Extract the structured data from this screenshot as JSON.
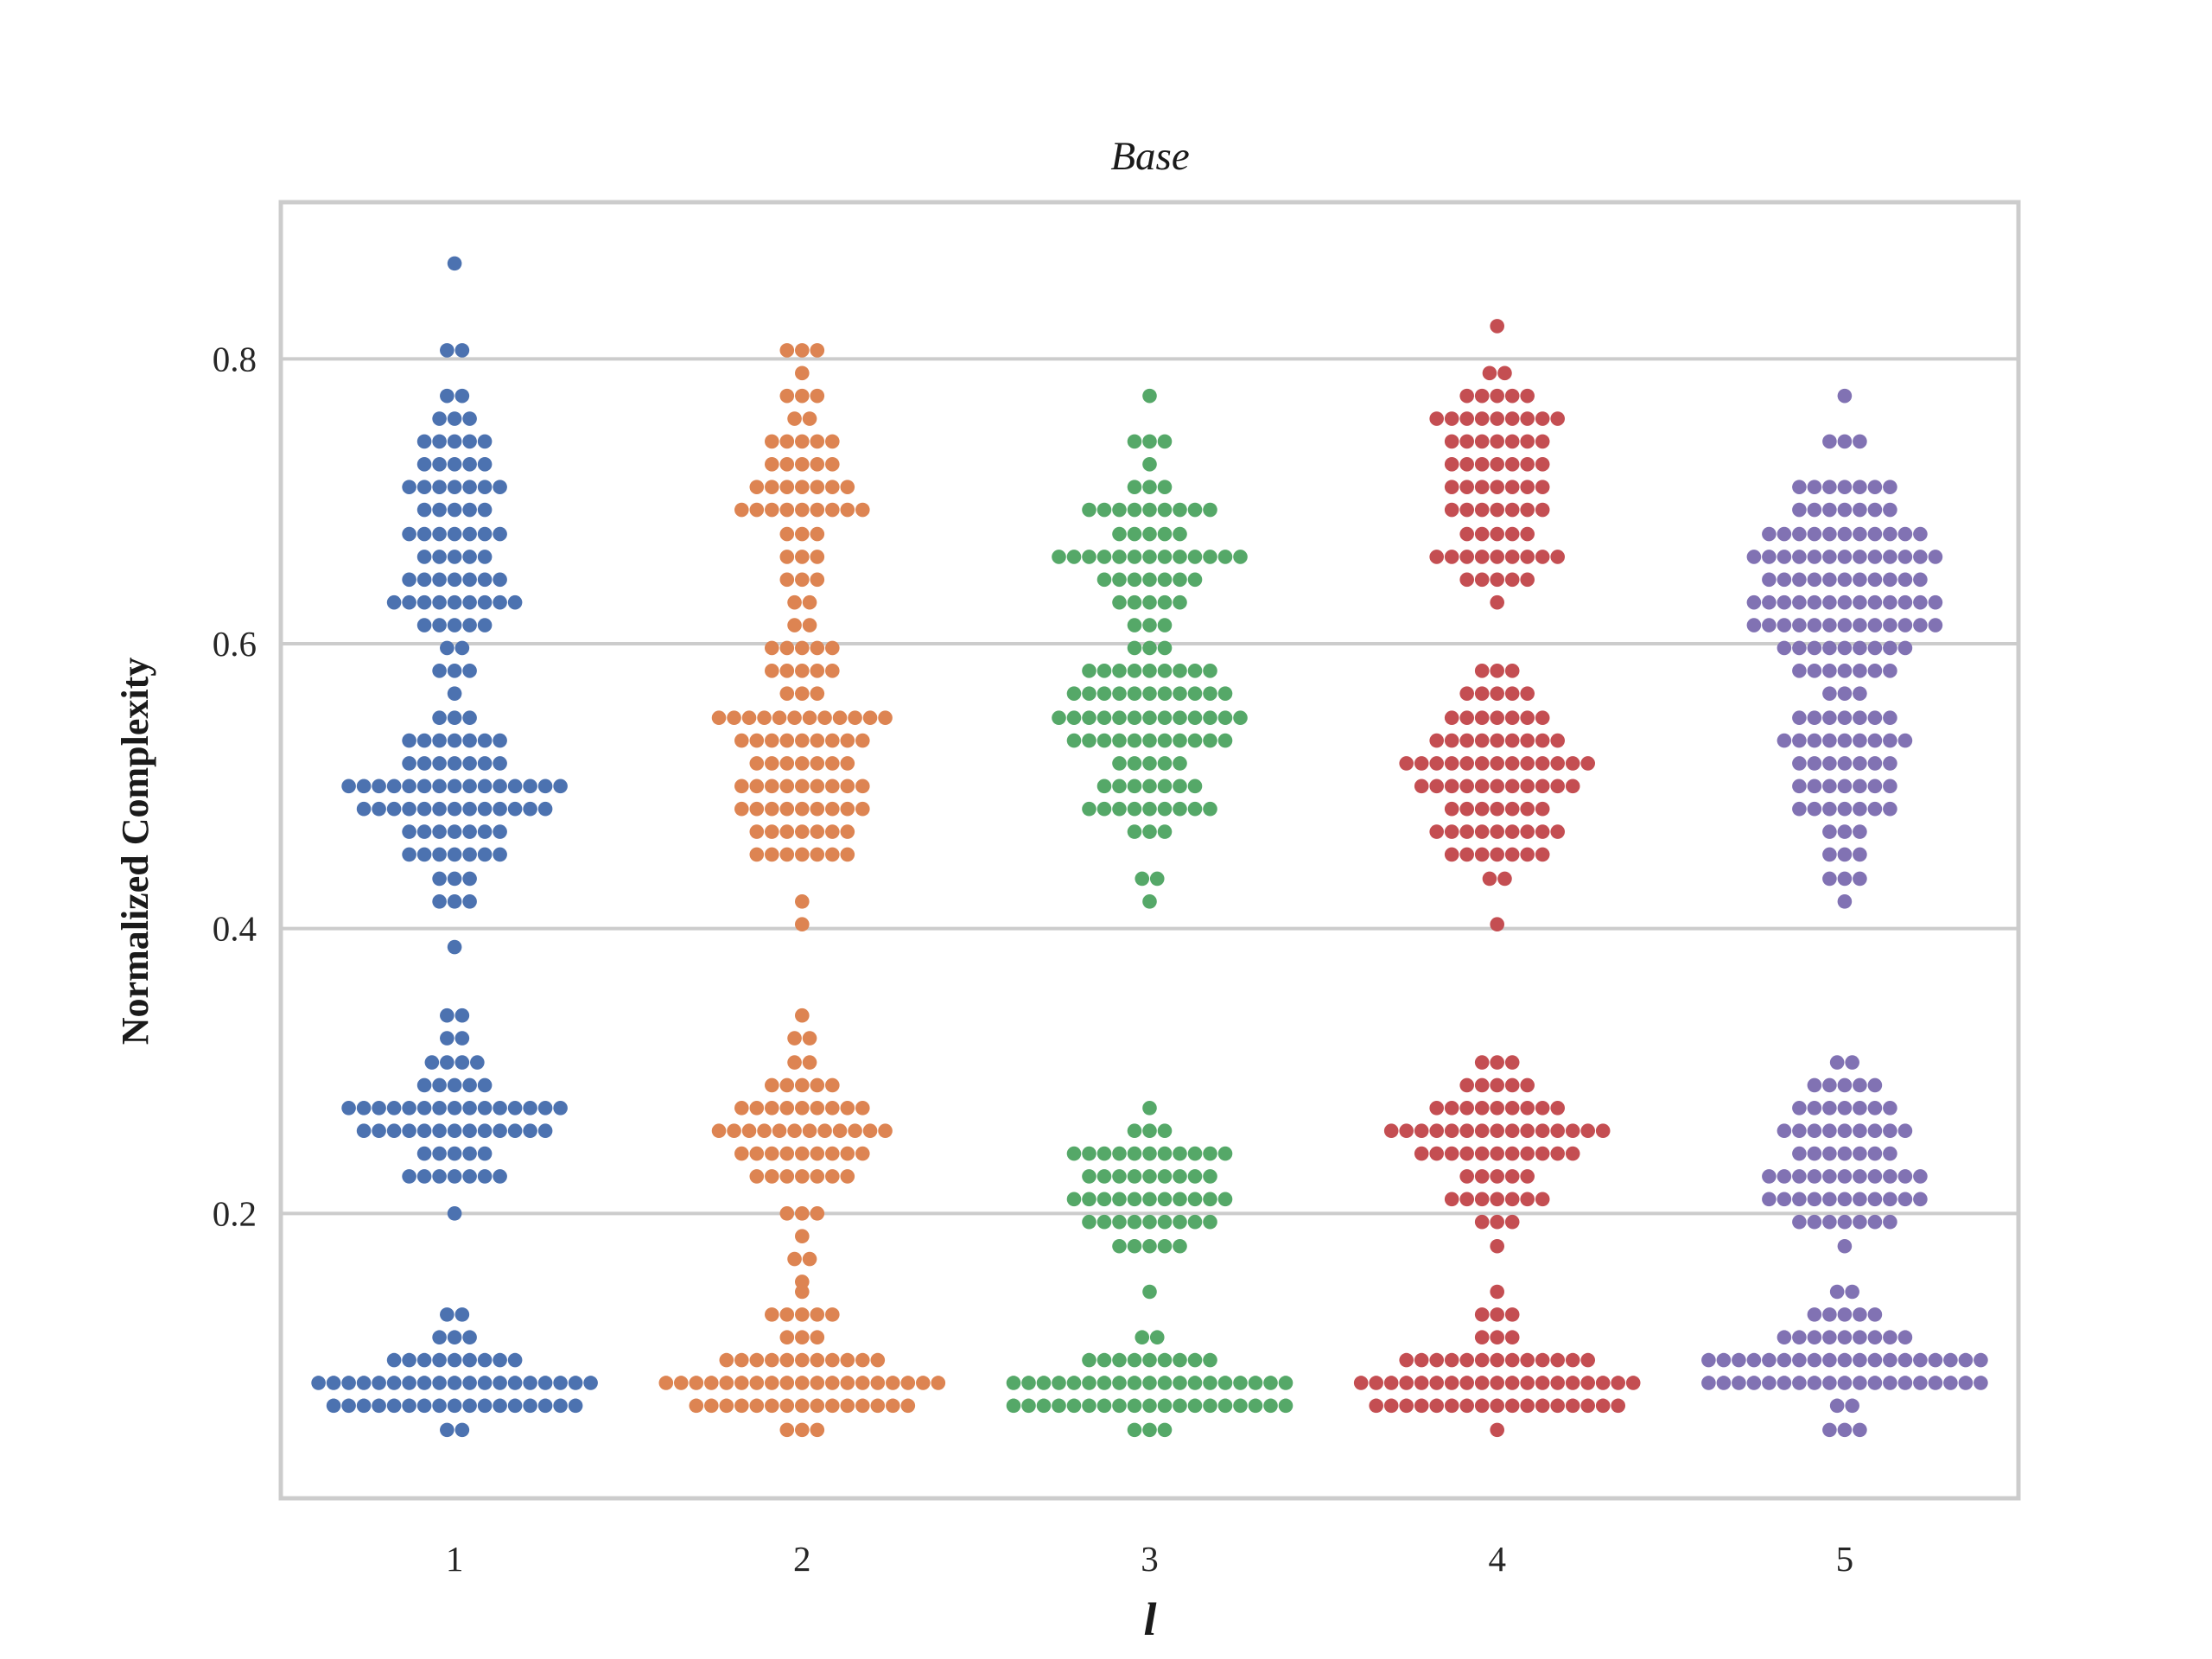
{
  "chart_data": {
    "type": "swarm",
    "title": "Base",
    "xlabel": "l",
    "ylabel": "Normalized Complexity",
    "categories": [
      "1",
      "2",
      "3",
      "4",
      "5"
    ],
    "ylim": [
      0.0,
      0.91
    ],
    "yticks": [
      0.2,
      0.4,
      0.6,
      0.8
    ],
    "ytick_labels": [
      "0.2",
      "0.4",
      "0.6",
      "0.8"
    ],
    "grid": "horizontal",
    "colors": [
      "#4c72b0",
      "#dd8452",
      "#55a868",
      "#c44e52",
      "#8172b3"
    ],
    "series": [
      {
        "category": "1",
        "bins": [
          [
            0.867,
            1
          ],
          [
            0.806,
            2
          ],
          [
            0.774,
            2
          ],
          [
            0.758,
            3
          ],
          [
            0.742,
            5
          ],
          [
            0.726,
            5
          ],
          [
            0.71,
            7
          ],
          [
            0.694,
            5
          ],
          [
            0.677,
            7
          ],
          [
            0.661,
            5
          ],
          [
            0.645,
            7
          ],
          [
            0.629,
            9
          ],
          [
            0.613,
            5
          ],
          [
            0.597,
            2
          ],
          [
            0.581,
            3
          ],
          [
            0.565,
            1
          ],
          [
            0.548,
            3
          ],
          [
            0.532,
            7
          ],
          [
            0.516,
            7
          ],
          [
            0.5,
            15
          ],
          [
            0.484,
            13
          ],
          [
            0.468,
            7
          ],
          [
            0.452,
            7
          ],
          [
            0.435,
            3
          ],
          [
            0.419,
            3
          ],
          [
            0.387,
            1
          ],
          [
            0.339,
            2
          ],
          [
            0.323,
            2
          ],
          [
            0.306,
            4
          ],
          [
            0.29,
            5
          ],
          [
            0.274,
            15
          ],
          [
            0.258,
            13
          ],
          [
            0.242,
            5
          ],
          [
            0.226,
            7
          ],
          [
            0.2,
            1
          ],
          [
            0.129,
            2
          ],
          [
            0.113,
            3
          ],
          [
            0.097,
            9
          ],
          [
            0.081,
            19
          ],
          [
            0.065,
            17
          ],
          [
            0.048,
            2
          ]
        ]
      },
      {
        "category": "2",
        "bins": [
          [
            0.806,
            3
          ],
          [
            0.79,
            1
          ],
          [
            0.774,
            3
          ],
          [
            0.758,
            2
          ],
          [
            0.742,
            5
          ],
          [
            0.726,
            5
          ],
          [
            0.71,
            7
          ],
          [
            0.694,
            9
          ],
          [
            0.677,
            3
          ],
          [
            0.661,
            3
          ],
          [
            0.645,
            3
          ],
          [
            0.629,
            2
          ],
          [
            0.613,
            2
          ],
          [
            0.597,
            5
          ],
          [
            0.581,
            5
          ],
          [
            0.565,
            3
          ],
          [
            0.548,
            12
          ],
          [
            0.532,
            9
          ],
          [
            0.516,
            7
          ],
          [
            0.5,
            9
          ],
          [
            0.484,
            9
          ],
          [
            0.468,
            7
          ],
          [
            0.452,
            7
          ],
          [
            0.419,
            1
          ],
          [
            0.403,
            1
          ],
          [
            0.339,
            1
          ],
          [
            0.323,
            2
          ],
          [
            0.306,
            2
          ],
          [
            0.29,
            5
          ],
          [
            0.274,
            9
          ],
          [
            0.258,
            12
          ],
          [
            0.242,
            9
          ],
          [
            0.226,
            7
          ],
          [
            0.2,
            3
          ],
          [
            0.184,
            1
          ],
          [
            0.168,
            2
          ],
          [
            0.152,
            1
          ],
          [
            0.145,
            1
          ],
          [
            0.129,
            5
          ],
          [
            0.113,
            3
          ],
          [
            0.097,
            11
          ],
          [
            0.081,
            19
          ],
          [
            0.065,
            15
          ],
          [
            0.048,
            3
          ]
        ]
      },
      {
        "category": "3",
        "bins": [
          [
            0.774,
            1
          ],
          [
            0.742,
            3
          ],
          [
            0.726,
            1
          ],
          [
            0.71,
            3
          ],
          [
            0.694,
            9
          ],
          [
            0.677,
            5
          ],
          [
            0.661,
            13
          ],
          [
            0.645,
            7
          ],
          [
            0.629,
            5
          ],
          [
            0.613,
            3
          ],
          [
            0.597,
            3
          ],
          [
            0.581,
            9
          ],
          [
            0.565,
            11
          ],
          [
            0.548,
            13
          ],
          [
            0.532,
            11
          ],
          [
            0.516,
            5
          ],
          [
            0.5,
            7
          ],
          [
            0.484,
            9
          ],
          [
            0.468,
            3
          ],
          [
            0.435,
            2
          ],
          [
            0.419,
            1
          ],
          [
            0.274,
            1
          ],
          [
            0.258,
            3
          ],
          [
            0.242,
            11
          ],
          [
            0.226,
            9
          ],
          [
            0.21,
            11
          ],
          [
            0.194,
            9
          ],
          [
            0.177,
            5
          ],
          [
            0.145,
            1
          ],
          [
            0.113,
            2
          ],
          [
            0.097,
            9
          ],
          [
            0.081,
            19
          ],
          [
            0.065,
            19
          ],
          [
            0.048,
            3
          ]
        ]
      },
      {
        "category": "4",
        "bins": [
          [
            0.823,
            1
          ],
          [
            0.79,
            2
          ],
          [
            0.774,
            5
          ],
          [
            0.758,
            9
          ],
          [
            0.742,
            7
          ],
          [
            0.726,
            7
          ],
          [
            0.71,
            7
          ],
          [
            0.694,
            7
          ],
          [
            0.677,
            5
          ],
          [
            0.661,
            9
          ],
          [
            0.645,
            5
          ],
          [
            0.629,
            1
          ],
          [
            0.581,
            3
          ],
          [
            0.565,
            5
          ],
          [
            0.548,
            7
          ],
          [
            0.532,
            9
          ],
          [
            0.516,
            13
          ],
          [
            0.5,
            11
          ],
          [
            0.484,
            7
          ],
          [
            0.468,
            9
          ],
          [
            0.452,
            7
          ],
          [
            0.435,
            2
          ],
          [
            0.403,
            1
          ],
          [
            0.306,
            3
          ],
          [
            0.29,
            5
          ],
          [
            0.274,
            9
          ],
          [
            0.258,
            15
          ],
          [
            0.242,
            11
          ],
          [
            0.226,
            5
          ],
          [
            0.21,
            7
          ],
          [
            0.194,
            3
          ],
          [
            0.177,
            1
          ],
          [
            0.145,
            1
          ],
          [
            0.129,
            3
          ],
          [
            0.113,
            3
          ],
          [
            0.097,
            13
          ],
          [
            0.081,
            19
          ],
          [
            0.065,
            17
          ],
          [
            0.048,
            1
          ]
        ]
      },
      {
        "category": "5",
        "bins": [
          [
            0.774,
            1
          ],
          [
            0.742,
            3
          ],
          [
            0.71,
            7
          ],
          [
            0.694,
            7
          ],
          [
            0.677,
            11
          ],
          [
            0.661,
            13
          ],
          [
            0.645,
            11
          ],
          [
            0.629,
            13
          ],
          [
            0.613,
            13
          ],
          [
            0.597,
            9
          ],
          [
            0.581,
            7
          ],
          [
            0.565,
            3
          ],
          [
            0.548,
            7
          ],
          [
            0.532,
            9
          ],
          [
            0.516,
            7
          ],
          [
            0.5,
            7
          ],
          [
            0.484,
            7
          ],
          [
            0.468,
            3
          ],
          [
            0.452,
            3
          ],
          [
            0.435,
            3
          ],
          [
            0.419,
            1
          ],
          [
            0.306,
            2
          ],
          [
            0.29,
            5
          ],
          [
            0.274,
            7
          ],
          [
            0.258,
            9
          ],
          [
            0.242,
            7
          ],
          [
            0.226,
            11
          ],
          [
            0.21,
            11
          ],
          [
            0.194,
            7
          ],
          [
            0.177,
            1
          ],
          [
            0.145,
            2
          ],
          [
            0.129,
            5
          ],
          [
            0.113,
            9
          ],
          [
            0.097,
            19
          ],
          [
            0.081,
            19
          ],
          [
            0.065,
            2
          ],
          [
            0.048,
            3
          ]
        ]
      }
    ]
  }
}
